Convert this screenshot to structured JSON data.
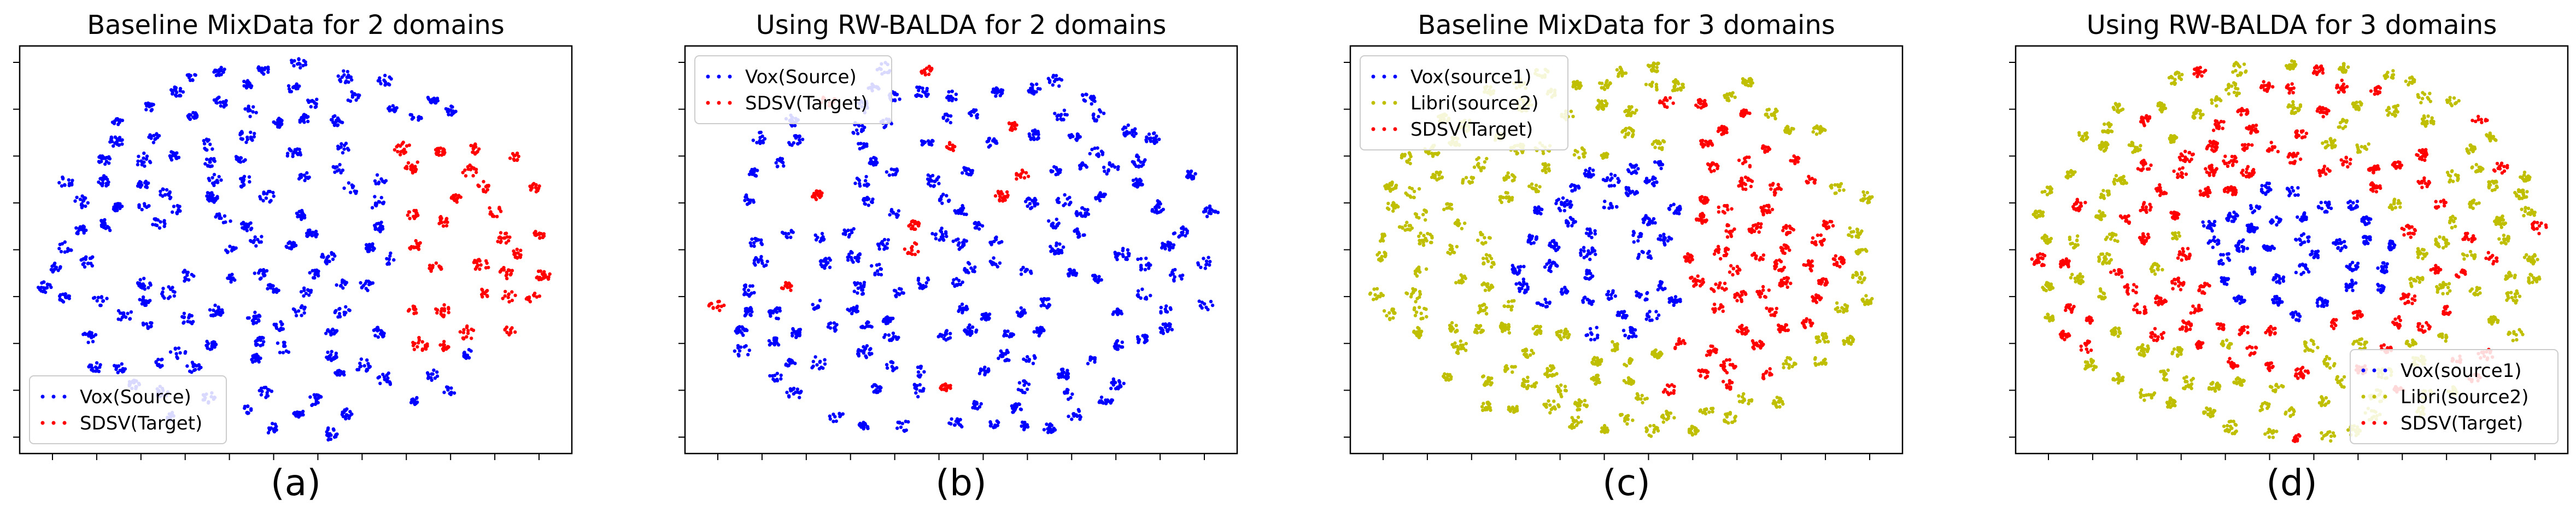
{
  "chart_data": [
    {
      "type": "scatter",
      "title": "Baseline MixData for 2 domains",
      "caption": "(a)",
      "legend_position": "lower-left",
      "xlim": [
        0,
        100
      ],
      "ylim": [
        0,
        100
      ],
      "series": [
        {
          "name": "Vox(Source)",
          "color": "#0000ff",
          "cluster_count": 130
        },
        {
          "name": "SDSV(Target)",
          "color": "#ff0000",
          "cluster_count": 20
        }
      ]
    },
    {
      "type": "scatter",
      "title": "Using RW-BALDA for 2 domains",
      "caption": "(b)",
      "legend_position": "upper-left",
      "xlim": [
        0,
        100
      ],
      "ylim": [
        0,
        100
      ],
      "series": [
        {
          "name": "Vox(Source)",
          "color": "#0000ff",
          "cluster_count": 130
        },
        {
          "name": "SDSV(Target)",
          "color": "#ff0000",
          "cluster_count": 20
        }
      ]
    },
    {
      "type": "scatter",
      "title": "Baseline MixData for 3 domains",
      "caption": "(c)",
      "legend_position": "upper-left",
      "xlim": [
        0,
        100
      ],
      "ylim": [
        0,
        100
      ],
      "series": [
        {
          "name": "Vox(source1)",
          "color": "#0000ff",
          "cluster_count": 65
        },
        {
          "name": "Libri(source2)",
          "color": "#bfbf00",
          "cluster_count": 70
        },
        {
          "name": "SDSV(Target)",
          "color": "#ff0000",
          "cluster_count": 55
        }
      ]
    },
    {
      "type": "scatter",
      "title": "Using RW-BALDA for 3 domains",
      "caption": "(d)",
      "legend_position": "lower-right",
      "xlim": [
        0,
        100
      ],
      "ylim": [
        0,
        100
      ],
      "series": [
        {
          "name": "Vox(source1)",
          "color": "#0000ff",
          "cluster_count": 65
        },
        {
          "name": "Libri(source2)",
          "color": "#bfbf00",
          "cluster_count": 70
        },
        {
          "name": "SDSV(Target)",
          "color": "#ff0000",
          "cluster_count": 80
        }
      ]
    }
  ]
}
